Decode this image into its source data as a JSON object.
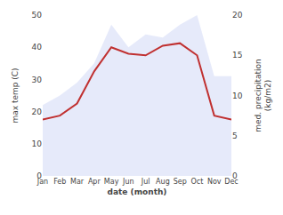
{
  "chart_data": {
    "type": "area_line",
    "categories": [
      "Jan",
      "Feb",
      "Mar",
      "Apr",
      "May",
      "Jun",
      "Jul",
      "Aug",
      "Sep",
      "Oct",
      "Nov",
      "Dec"
    ],
    "series": [
      {
        "type": "area",
        "color": "#c8d0f5",
        "values": [
          22,
          25,
          29,
          35,
          47,
          40,
          44,
          43,
          47,
          50,
          31,
          31
        ]
      },
      {
        "type": "line",
        "color": "#c03030",
        "axis": "y2",
        "values": [
          7.0,
          7.5,
          9.0,
          13.0,
          16.0,
          15.2,
          15.0,
          16.2,
          16.5,
          15.0,
          7.5,
          7.0
        ]
      }
    ],
    "xlabel": "date (month)",
    "ylabel": "max temp (C)",
    "y2label": "med. precipitation\n(kg/m2)",
    "ylim": [
      0,
      50
    ],
    "yticks": [
      0,
      10,
      20,
      30,
      40,
      50
    ],
    "y2lim": [
      0,
      20
    ],
    "y2ticks": [
      0,
      5,
      10,
      15,
      20
    ],
    "grid": false
  }
}
